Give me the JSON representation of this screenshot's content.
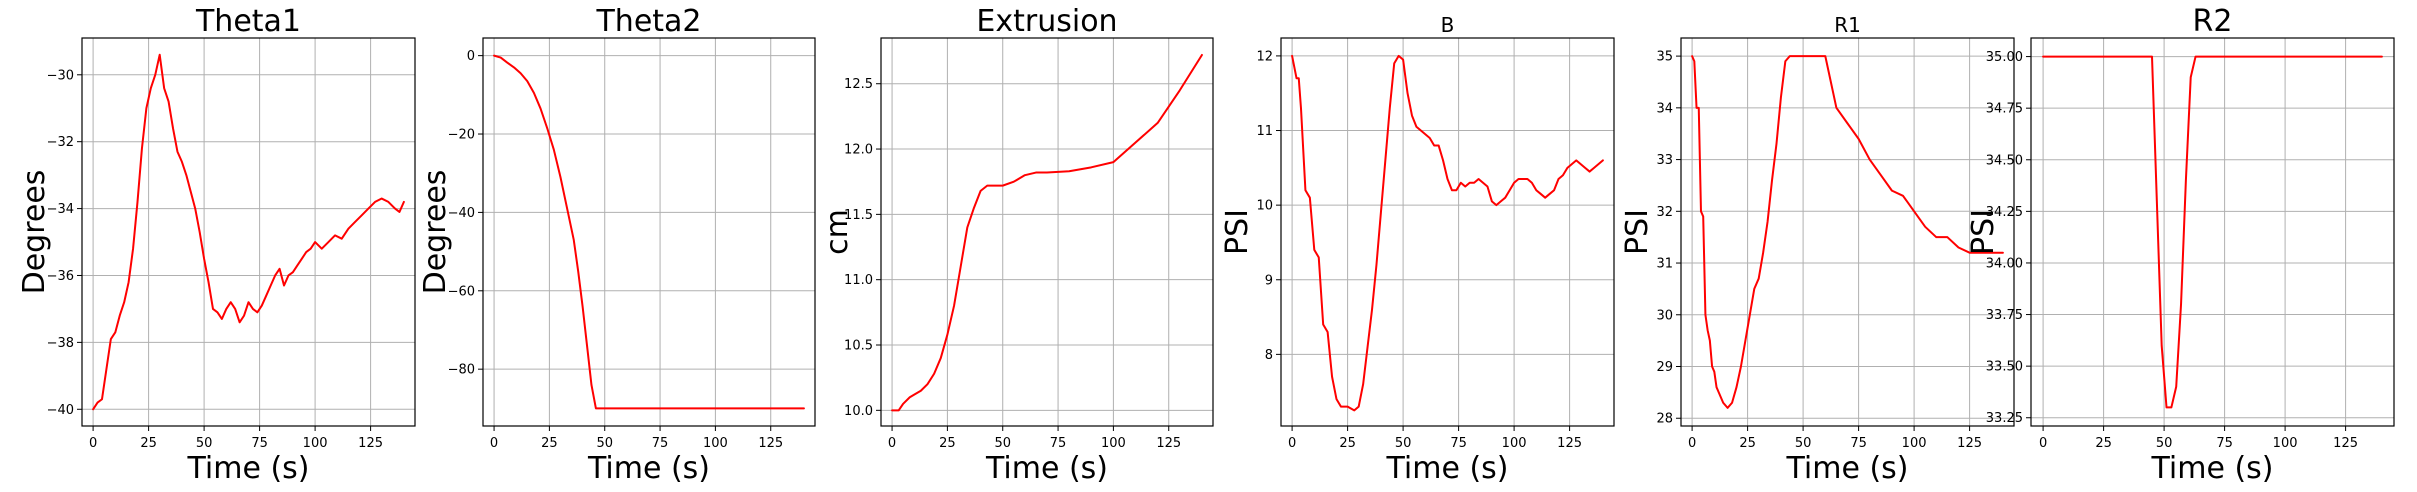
{
  "chart_data": [
    {
      "type": "line",
      "title": "Theta1",
      "title_size": "large",
      "xlabel": "Time (s)",
      "ylabel": "Degrees",
      "xlim": [
        -5,
        145
      ],
      "ylim": [
        -40.5,
        -28.9
      ],
      "xticks": [
        0,
        25,
        50,
        75,
        100,
        125
      ],
      "xtick_labels": [
        "0",
        "25",
        "50",
        "75",
        "100",
        "125"
      ],
      "yticks": [
        -40,
        -38,
        -36,
        -34,
        -32,
        -30
      ],
      "ytick_labels": [
        "−40",
        "−38",
        "−36",
        "−34",
        "−32",
        "−30"
      ],
      "grid": true,
      "line_color": "#ff0000",
      "series": [
        {
          "x": [
            0,
            2,
            4,
            6,
            8,
            10,
            12,
            14,
            16,
            18,
            20,
            22,
            24,
            26,
            28,
            30,
            32,
            34,
            36,
            38,
            40,
            42,
            44,
            46,
            48,
            50,
            52,
            54,
            56,
            58,
            60,
            62,
            64,
            66,
            68,
            70,
            72,
            74,
            76,
            78,
            80,
            82,
            84,
            86,
            88,
            90,
            92,
            94,
            96,
            98,
            100,
            103,
            106,
            109,
            112,
            115,
            118,
            121,
            124,
            127,
            130,
            133,
            136,
            138,
            140
          ],
          "y": [
            -40.0,
            -39.8,
            -39.7,
            -38.8,
            -37.9,
            -37.7,
            -37.2,
            -36.8,
            -36.2,
            -35.2,
            -33.8,
            -32.2,
            -31.0,
            -30.4,
            -30.0,
            -29.4,
            -30.4,
            -30.8,
            -31.6,
            -32.3,
            -32.6,
            -33.0,
            -33.5,
            -34.0,
            -34.7,
            -35.5,
            -36.2,
            -37.0,
            -37.1,
            -37.3,
            -37.0,
            -36.8,
            -37.0,
            -37.4,
            -37.2,
            -36.8,
            -37.0,
            -37.1,
            -36.9,
            -36.6,
            -36.3,
            -36.0,
            -35.8,
            -36.3,
            -36.0,
            -35.9,
            -35.7,
            -35.5,
            -35.3,
            -35.2,
            -35.0,
            -35.2,
            -35.0,
            -34.8,
            -34.9,
            -34.6,
            -34.4,
            -34.2,
            -34.0,
            -33.8,
            -33.7,
            -33.8,
            -34.0,
            -34.1,
            -33.8
          ]
        }
      ]
    },
    {
      "type": "line",
      "title": "Theta2",
      "title_size": "large",
      "xlabel": "Time (s)",
      "ylabel": "Degrees",
      "xlim": [
        -5,
        145
      ],
      "ylim": [
        -94.5,
        4.5
      ],
      "xticks": [
        0,
        25,
        50,
        75,
        100,
        125
      ],
      "xtick_labels": [
        "0",
        "25",
        "50",
        "75",
        "100",
        "125"
      ],
      "yticks": [
        -80,
        -60,
        -40,
        -20,
        0
      ],
      "ytick_labels": [
        "−80",
        "−60",
        "−40",
        "−20",
        "0"
      ],
      "grid": true,
      "line_color": "#ff0000",
      "series": [
        {
          "x": [
            0,
            3,
            6,
            9,
            12,
            15,
            18,
            21,
            24,
            27,
            30,
            33,
            36,
            38,
            40,
            42,
            44,
            46,
            50,
            60,
            80,
            100,
            120,
            140
          ],
          "y": [
            0,
            -0.5,
            -1.8,
            -3.0,
            -4.5,
            -6.5,
            -9.5,
            -13.5,
            -18.5,
            -24.0,
            -31.0,
            -39.0,
            -47.0,
            -55.0,
            -64.0,
            -74.0,
            -84.0,
            -90.0,
            -90.0,
            -90.0,
            -90.0,
            -90.0,
            -90.0,
            -90.0
          ]
        }
      ]
    },
    {
      "type": "line",
      "title": "Extrusion",
      "title_size": "large",
      "xlabel": "Time (s)",
      "ylabel": "cm",
      "xlim": [
        -5,
        145
      ],
      "ylim": [
        9.88,
        12.85
      ],
      "xticks": [
        0,
        25,
        50,
        75,
        100,
        125
      ],
      "xtick_labels": [
        "0",
        "25",
        "50",
        "75",
        "100",
        "125"
      ],
      "yticks": [
        10.0,
        10.5,
        11.0,
        11.5,
        12.0,
        12.5
      ],
      "ytick_labels": [
        "10.0",
        "10.5",
        "11.0",
        "11.5",
        "12.0",
        "12.5"
      ],
      "grid": true,
      "line_color": "#ff0000",
      "series": [
        {
          "x": [
            0,
            3,
            5,
            8,
            10,
            13,
            16,
            19,
            22,
            25,
            28,
            31,
            34,
            37,
            40,
            43,
            46,
            50,
            55,
            60,
            65,
            70,
            80,
            90,
            100,
            110,
            120,
            130,
            140
          ],
          "y": [
            10.0,
            10.0,
            10.05,
            10.1,
            10.12,
            10.15,
            10.2,
            10.28,
            10.4,
            10.58,
            10.8,
            11.1,
            11.4,
            11.55,
            11.68,
            11.72,
            11.72,
            11.72,
            11.75,
            11.8,
            11.82,
            11.82,
            11.83,
            11.86,
            11.9,
            12.05,
            12.2,
            12.45,
            12.72
          ]
        }
      ]
    },
    {
      "type": "line",
      "title": "B",
      "title_size": "small",
      "xlabel": "Time (s)",
      "ylabel": "PSI",
      "xlim": [
        -5,
        145
      ],
      "ylim": [
        7.04,
        12.24
      ],
      "xticks": [
        0,
        25,
        50,
        75,
        100,
        125
      ],
      "xtick_labels": [
        "0",
        "25",
        "50",
        "75",
        "100",
        "125"
      ],
      "yticks": [
        8,
        9,
        10,
        11,
        12
      ],
      "ytick_labels": [
        "8",
        "9",
        "10",
        "11",
        "12"
      ],
      "grid": true,
      "line_color": "#ff0000",
      "series": [
        {
          "x": [
            0,
            2,
            3,
            4,
            6,
            8,
            10,
            12,
            14,
            16,
            18,
            20,
            22,
            25,
            28,
            30,
            32,
            34,
            36,
            38,
            40,
            42,
            44,
            46,
            48,
            50,
            52,
            54,
            56,
            58,
            60,
            62,
            64,
            66,
            68,
            70,
            72,
            74,
            76,
            78,
            80,
            82,
            84,
            86,
            88,
            90,
            92,
            94,
            96,
            98,
            100,
            102,
            104,
            106,
            108,
            110,
            112,
            114,
            116,
            118,
            120,
            122,
            124,
            126,
            128,
            130,
            132,
            134,
            136,
            138,
            140
          ],
          "y": [
            12.0,
            11.7,
            11.7,
            11.3,
            10.2,
            10.1,
            9.4,
            9.3,
            8.4,
            8.3,
            7.7,
            7.4,
            7.3,
            7.3,
            7.25,
            7.3,
            7.6,
            8.1,
            8.6,
            9.2,
            9.9,
            10.6,
            11.3,
            11.9,
            12.0,
            11.95,
            11.5,
            11.2,
            11.05,
            11.0,
            10.95,
            10.9,
            10.8,
            10.8,
            10.6,
            10.35,
            10.2,
            10.2,
            10.3,
            10.25,
            10.3,
            10.3,
            10.35,
            10.3,
            10.25,
            10.05,
            10.0,
            10.05,
            10.1,
            10.2,
            10.3,
            10.35,
            10.35,
            10.35,
            10.3,
            10.2,
            10.15,
            10.1,
            10.15,
            10.2,
            10.35,
            10.4,
            10.5,
            10.55,
            10.6,
            10.55,
            10.5,
            10.45,
            10.5,
            10.55,
            10.6
          ]
        }
      ]
    },
    {
      "type": "line",
      "title": "R1",
      "title_size": "small",
      "xlabel": "Time (s)",
      "ylabel": "PSI",
      "xlim": [
        -5,
        145
      ],
      "ylim": [
        27.85,
        35.35
      ],
      "xticks": [
        0,
        25,
        50,
        75,
        100,
        125
      ],
      "xtick_labels": [
        "0",
        "25",
        "50",
        "75",
        "100",
        "125"
      ],
      "yticks": [
        28,
        29,
        30,
        31,
        32,
        33,
        34,
        35
      ],
      "ytick_labels": [
        "28",
        "29",
        "30",
        "31",
        "32",
        "33",
        "34",
        "35"
      ],
      "grid": true,
      "line_color": "#ff0000",
      "series": [
        {
          "x": [
            0,
            1,
            2,
            3,
            4,
            5,
            6,
            7,
            8,
            9,
            10,
            11,
            12,
            14,
            16,
            18,
            20,
            22,
            24,
            26,
            28,
            30,
            32,
            34,
            36,
            38,
            40,
            42,
            44,
            46,
            48,
            50,
            55,
            60,
            65,
            70,
            75,
            80,
            85,
            90,
            95,
            100,
            105,
            110,
            115,
            120,
            125,
            130,
            135,
            140
          ],
          "y": [
            35.0,
            34.9,
            34.0,
            34.0,
            32.0,
            31.9,
            30.0,
            29.7,
            29.5,
            29.0,
            28.9,
            28.6,
            28.5,
            28.3,
            28.2,
            28.3,
            28.6,
            29.0,
            29.5,
            30.0,
            30.5,
            30.7,
            31.2,
            31.8,
            32.6,
            33.3,
            34.2,
            34.9,
            35.0,
            35.0,
            35.0,
            35.0,
            35.0,
            35.0,
            34.0,
            33.7,
            33.4,
            33.0,
            32.7,
            32.4,
            32.3,
            32.0,
            31.7,
            31.5,
            31.5,
            31.3,
            31.2,
            31.2,
            31.2,
            31.2
          ]
        }
      ]
    },
    {
      "type": "line",
      "title": "R2",
      "title_size": "large",
      "xlabel": "Time (s)",
      "ylabel": "PSI",
      "xlim": [
        -5,
        145
      ],
      "ylim": [
        33.21,
        35.09
      ],
      "xticks": [
        0,
        25,
        50,
        75,
        100,
        125
      ],
      "xtick_labels": [
        "0",
        "25",
        "50",
        "75",
        "100",
        "125"
      ],
      "yticks": [
        33.25,
        33.5,
        33.75,
        34.0,
        34.25,
        34.5,
        34.75,
        35.0
      ],
      "ytick_labels": [
        "33.25",
        "33.50",
        "33.75",
        "34.00",
        "34.25",
        "34.50",
        "34.75",
        "35.00"
      ],
      "grid": true,
      "line_color": "#ff0000",
      "series": [
        {
          "x": [
            0,
            10,
            20,
            30,
            40,
            45,
            47,
            49,
            51,
            53,
            55,
            57,
            59,
            61,
            63,
            65,
            70,
            80,
            100,
            120,
            140
          ],
          "y": [
            35.0,
            35.0,
            35.0,
            35.0,
            35.0,
            35.0,
            34.3,
            33.6,
            33.3,
            33.3,
            33.4,
            33.8,
            34.4,
            34.9,
            35.0,
            35.0,
            35.0,
            35.0,
            35.0,
            35.0,
            35.0
          ]
        }
      ]
    }
  ]
}
